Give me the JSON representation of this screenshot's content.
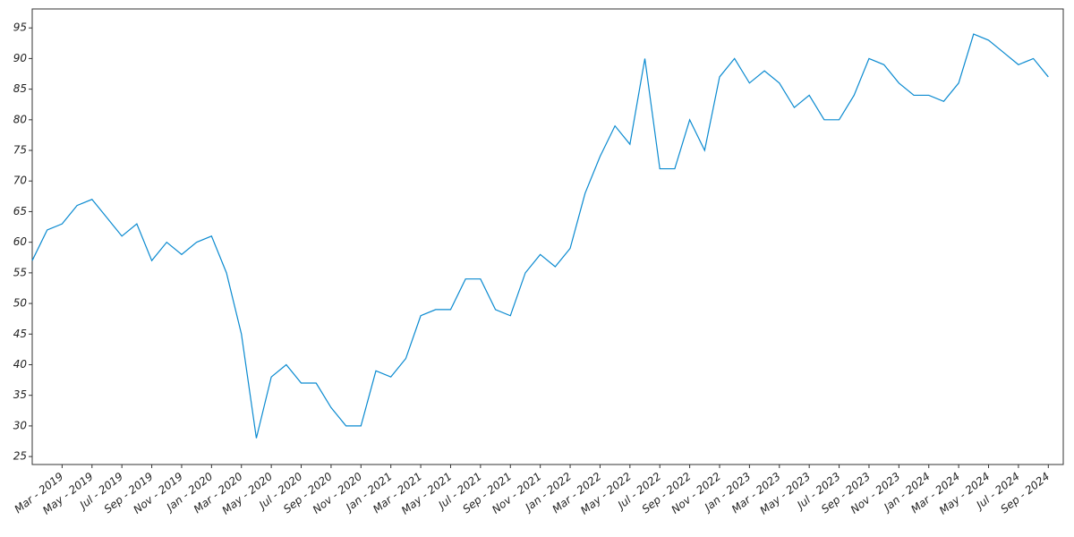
{
  "chart_data": {
    "type": "line",
    "color": "#0a8ad0",
    "x": [
      "2019-01",
      "2019-02",
      "2019-03",
      "2019-04",
      "2019-05",
      "2019-06",
      "2019-07",
      "2019-08",
      "2019-09",
      "2019-10",
      "2019-11",
      "2019-12",
      "2020-01",
      "2020-02",
      "2020-03",
      "2020-04",
      "2020-05",
      "2020-06",
      "2020-07",
      "2020-08",
      "2020-09",
      "2020-10",
      "2020-11",
      "2020-12",
      "2021-01",
      "2021-02",
      "2021-03",
      "2021-04",
      "2021-05",
      "2021-06",
      "2021-07",
      "2021-08",
      "2021-09",
      "2021-10",
      "2021-11",
      "2021-12",
      "2022-01",
      "2022-02",
      "2022-03",
      "2022-04",
      "2022-05",
      "2022-06",
      "2022-07",
      "2022-08",
      "2022-09",
      "2022-10",
      "2022-11",
      "2022-12",
      "2023-01",
      "2023-02",
      "2023-03",
      "2023-04",
      "2023-05",
      "2023-06",
      "2023-07",
      "2023-08",
      "2023-09",
      "2023-10",
      "2023-11",
      "2023-12",
      "2024-01",
      "2024-02",
      "2024-03",
      "2024-04",
      "2024-05",
      "2024-06",
      "2024-07",
      "2024-08",
      "2024-09"
    ],
    "values": [
      57,
      62,
      63,
      66,
      67,
      64,
      61,
      63,
      57,
      60,
      58,
      60,
      61,
      55,
      45,
      28,
      38,
      40,
      37,
      37,
      33,
      30,
      30,
      39,
      38,
      41,
      48,
      49,
      49,
      54,
      54,
      49,
      48,
      55,
      58,
      56,
      59,
      68,
      74,
      79,
      76,
      90,
      72,
      72,
      80,
      75,
      87,
      90,
      86,
      88,
      86,
      82,
      84,
      80,
      80,
      84,
      90,
      89,
      86,
      84,
      84,
      83,
      86,
      94,
      93,
      91,
      89,
      90,
      87
    ],
    "xlim": [
      "2019-01",
      "2024-10"
    ],
    "xticks": [
      {
        "value": "2019-03",
        "label": "Mar - 2019"
      },
      {
        "value": "2019-05",
        "label": "May - 2019"
      },
      {
        "value": "2019-07",
        "label": "Jul - 2019"
      },
      {
        "value": "2019-09",
        "label": "Sep - 2019"
      },
      {
        "value": "2019-11",
        "label": "Nov - 2019"
      },
      {
        "value": "2020-01",
        "label": "Jan - 2020"
      },
      {
        "value": "2020-03",
        "label": "Mar - 2020"
      },
      {
        "value": "2020-05",
        "label": "May - 2020"
      },
      {
        "value": "2020-07",
        "label": "Jul - 2020"
      },
      {
        "value": "2020-09",
        "label": "Sep - 2020"
      },
      {
        "value": "2020-11",
        "label": "Nov - 2020"
      },
      {
        "value": "2021-01",
        "label": "Jan - 2021"
      },
      {
        "value": "2021-03",
        "label": "Mar - 2021"
      },
      {
        "value": "2021-05",
        "label": "May - 2021"
      },
      {
        "value": "2021-07",
        "label": "Jul - 2021"
      },
      {
        "value": "2021-09",
        "label": "Sep - 2021"
      },
      {
        "value": "2021-11",
        "label": "Nov - 2021"
      },
      {
        "value": "2022-01",
        "label": "Jan - 2022"
      },
      {
        "value": "2022-03",
        "label": "Mar - 2022"
      },
      {
        "value": "2022-05",
        "label": "May - 2022"
      },
      {
        "value": "2022-07",
        "label": "Jul - 2022"
      },
      {
        "value": "2022-09",
        "label": "Sep - 2022"
      },
      {
        "value": "2022-11",
        "label": "Nov - 2022"
      },
      {
        "value": "2023-01",
        "label": "Jan - 2023"
      },
      {
        "value": "2023-03",
        "label": "Mar - 2023"
      },
      {
        "value": "2023-05",
        "label": "May - 2023"
      },
      {
        "value": "2023-07",
        "label": "Jul - 2023"
      },
      {
        "value": "2023-09",
        "label": "Sep - 2023"
      },
      {
        "value": "2023-11",
        "label": "Nov - 2023"
      },
      {
        "value": "2024-01",
        "label": "Jan - 2024"
      },
      {
        "value": "2024-03",
        "label": "Mar - 2024"
      },
      {
        "value": "2024-05",
        "label": "May - 2024"
      },
      {
        "value": "2024-07",
        "label": "Jul - 2024"
      },
      {
        "value": "2024-09",
        "label": "Sep - 2024"
      }
    ],
    "ylim": [
      23.7,
      98.1
    ],
    "yticks": [
      25,
      30,
      35,
      40,
      45,
      50,
      55,
      60,
      65,
      70,
      75,
      80,
      85,
      90,
      95
    ],
    "grid": false
  }
}
